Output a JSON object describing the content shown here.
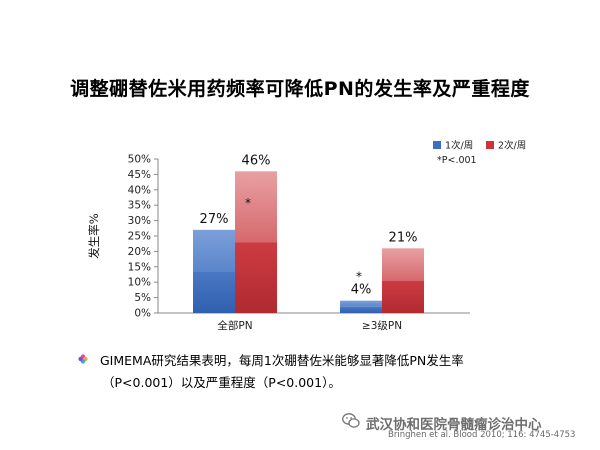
{
  "title": "调整硼替佐米用药频率可降低PN的发生率及严重程度",
  "chart_data": {
    "type": "bar",
    "stacked_gradient": true,
    "categories": [
      "全部PN",
      "≥3级PN"
    ],
    "ylabel": "发生率%",
    "ylim": [
      0,
      50
    ],
    "yticks": [
      "0%",
      "5%",
      "10%",
      "15%",
      "20%",
      "25%",
      "30%",
      "35%",
      "40%",
      "45%",
      "50%"
    ],
    "series": [
      {
        "name": "1次/周",
        "values": [
          27,
          4
        ],
        "labels": [
          "27%",
          "4%"
        ],
        "color": "#3d6fc0"
      },
      {
        "name": "2次/周",
        "values": [
          46,
          21
        ],
        "labels": [
          "46%",
          "21%"
        ],
        "color": "#c9353b"
      }
    ],
    "significance": [
      "*",
      "*"
    ],
    "note": "*P<.001",
    "grid": false,
    "legend_position": "top-right"
  },
  "bullet": {
    "line1": "GIMEMA研究结果表明，每周1次硼替佐米能够显著降低PN发生率",
    "line2": "（P<0.001）以及严重程度（P<0.001）。"
  },
  "watermark": "武汉协和医院骨髓瘤诊治中心",
  "citation": "Bringhen et al. Blood 2010; 116: 4745-4753"
}
